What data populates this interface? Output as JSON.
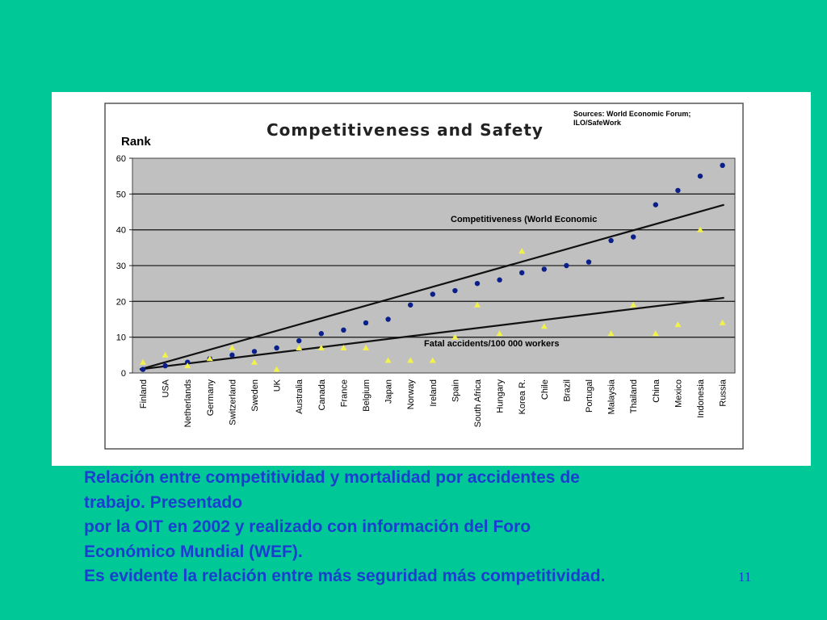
{
  "colors": {
    "slide_background": "#00c896",
    "plot_background": "#c0c0c0",
    "competitiveness_marker": "#0b1f8a",
    "accidents_marker": "#f2f24a",
    "caption_text": "#1a3fd0"
  },
  "chart_data": {
    "type": "scatter",
    "title": "Competitiveness and Safety",
    "ylabel": "Rank",
    "xlabel": "",
    "source_note": [
      "Sources: World Economic Forum;",
      "ILO/SafeWork"
    ],
    "ylim": [
      0,
      60
    ],
    "yticks": [
      0,
      10,
      20,
      30,
      40,
      50,
      60
    ],
    "grid": true,
    "categories": [
      "Finland",
      "USA",
      "Netherlands",
      "Germany",
      "Switzerland",
      "Sweden",
      "UK",
      "Australia",
      "Canada",
      "France",
      "Belgium",
      "Japan",
      "Norway",
      "Ireland",
      "Spain",
      "South Africa",
      "Hungary",
      "Korea R.",
      "Chile",
      "Brazil",
      "Portugal",
      "Malaysia",
      "Thailand",
      "China",
      "Mexico",
      "Indonesia",
      "Russia"
    ],
    "series": [
      {
        "name": "Competitiveness (World Economic",
        "marker": "circle",
        "values": [
          1,
          2,
          3,
          4,
          5,
          6,
          7,
          9,
          11,
          12,
          14,
          15,
          19,
          22,
          23,
          25,
          26,
          28,
          29,
          30,
          31,
          37,
          38,
          47,
          51,
          55,
          58
        ],
        "trend": [
          1,
          47
        ]
      },
      {
        "name": "Fatal accidents/100 000 workers",
        "marker": "triangle",
        "values": [
          3,
          5,
          2,
          4,
          7,
          3,
          1,
          7,
          7,
          7,
          7,
          3.5,
          3.5,
          3.5,
          10,
          19,
          11,
          34,
          13,
          null,
          null,
          11,
          19,
          11,
          13.5,
          40,
          14
        ],
        "trend": [
          1,
          21
        ]
      }
    ]
  },
  "caption": {
    "lines": [
      "Relación entre competitividad y mortalidad por accidentes de",
      "trabajo. Presentado",
      "por la OIT en 2002 y realizado con información del Foro",
      "Económico Mundial (WEF).",
      "Es evidente la relación entre más seguridad más competitividad."
    ]
  },
  "slide_number": "11"
}
